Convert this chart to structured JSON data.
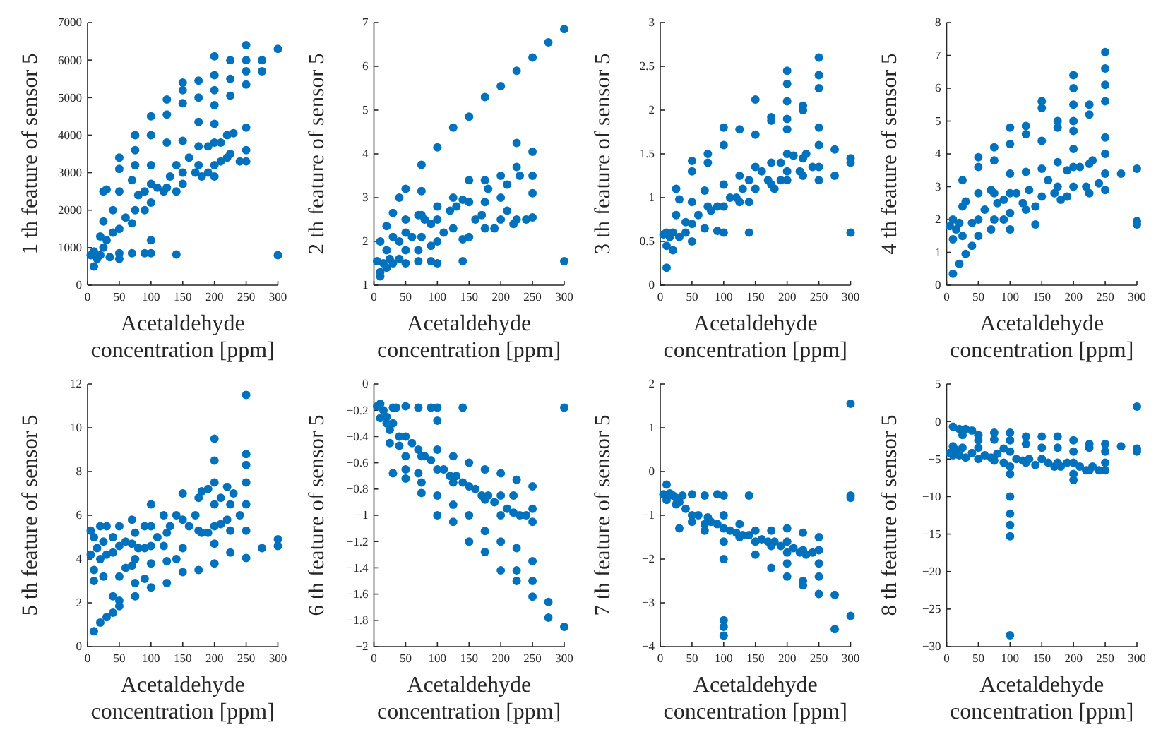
{
  "chart_data": [
    {
      "type": "scatter",
      "xlabel": "Acetaldehyde concentration [ppm]",
      "ylabel": "1 th feature of sensor 5",
      "xlim": [
        0,
        300
      ],
      "xticks": [
        0,
        50,
        100,
        150,
        200,
        250,
        300
      ],
      "ylim": [
        0,
        7000
      ],
      "yticks": [
        0,
        1000,
        2000,
        3000,
        4000,
        5000,
        6000,
        7000
      ],
      "marker": "circle",
      "grid": false,
      "series": [
        {
          "color": "#0072bd",
          "x": [
            5,
            10,
            10,
            15,
            20,
            20,
            25,
            25,
            25,
            30,
            30,
            35,
            40,
            40,
            50,
            50,
            50,
            50,
            50,
            50,
            60,
            70,
            70,
            70,
            75,
            75,
            75,
            75,
            80,
            90,
            90,
            90,
            100,
            100,
            100,
            100,
            100,
            100,
            100,
            110,
            120,
            125,
            125,
            125,
            125,
            130,
            140,
            140,
            140,
            150,
            150,
            150,
            150,
            150,
            150,
            160,
            170,
            175,
            175,
            175,
            175,
            175,
            180,
            190,
            190,
            200,
            200,
            200,
            200,
            200,
            200,
            200,
            200,
            210,
            210,
            220,
            220,
            225,
            225,
            225,
            225,
            230,
            240,
            250,
            250,
            250,
            250,
            250,
            250,
            250,
            275,
            275,
            300,
            300
          ],
          "values": [
            800,
            500,
            900,
            700,
            1300,
            800,
            2500,
            1700,
            1000,
            2550,
            1200,
            750,
            2000,
            1400,
            3400,
            3100,
            2500,
            1500,
            850,
            700,
            1800,
            2800,
            1650,
            850,
            4000,
            3600,
            3200,
            2000,
            2400,
            2500,
            2000,
            850,
            4500,
            4000,
            3200,
            2700,
            2200,
            1200,
            850,
            2600,
            2500,
            4950,
            4550,
            3800,
            2600,
            2900,
            3200,
            2500,
            820,
            5400,
            5200,
            4850,
            3850,
            3000,
            2700,
            3400,
            3000,
            5450,
            5000,
            4350,
            3700,
            3200,
            2900,
            3700,
            3000,
            6100,
            5600,
            5200,
            4800,
            4300,
            3800,
            3200,
            2900,
            3800,
            3300,
            4000,
            3400,
            6000,
            5500,
            5050,
            3500,
            4050,
            3300,
            6400,
            6000,
            5700,
            5350,
            4200,
            3600,
            3300,
            6000,
            5700,
            6300,
            800
          ]
        }
      ]
    },
    {
      "type": "scatter",
      "xlabel": "Acetaldehyde concentration [ppm]",
      "ylabel": "2 th feature of sensor 5",
      "xlim": [
        0,
        300
      ],
      "xticks": [
        0,
        50,
        100,
        150,
        200,
        250,
        300
      ],
      "ylim": [
        1,
        7
      ],
      "yticks": [
        1,
        2,
        3,
        4,
        5,
        6,
        7
      ],
      "marker": "circle",
      "grid": false,
      "series": [
        {
          "color": "#0072bd",
          "x": [
            5,
            10,
            10,
            10,
            15,
            20,
            20,
            20,
            25,
            30,
            30,
            30,
            40,
            40,
            40,
            50,
            50,
            50,
            50,
            50,
            60,
            70,
            70,
            70,
            75,
            75,
            75,
            75,
            80,
            90,
            90,
            90,
            100,
            100,
            100,
            100,
            100,
            110,
            120,
            125,
            125,
            125,
            130,
            140,
            140,
            140,
            150,
            150,
            150,
            150,
            160,
            170,
            175,
            175,
            175,
            175,
            180,
            190,
            200,
            200,
            200,
            200,
            210,
            210,
            220,
            225,
            225,
            225,
            225,
            230,
            240,
            250,
            250,
            250,
            250,
            250,
            275,
            300,
            300
          ],
          "values": [
            1.55,
            2,
            1.3,
            1.2,
            1.5,
            2.35,
            1.8,
            1.4,
            1.6,
            2.65,
            2.1,
            1.5,
            3,
            2,
            1.6,
            3.2,
            2.5,
            2.2,
            1.8,
            1.5,
            2.1,
            2.6,
            1.8,
            1.55,
            3.75,
            3.15,
            2.6,
            2.1,
            2.5,
            2.4,
            1.9,
            1.55,
            4.15,
            2.8,
            2.5,
            2,
            1.5,
            2.2,
            2.7,
            4.6,
            3,
            2.3,
            2.8,
            2.95,
            2.05,
            1.55,
            4.85,
            3.4,
            2.9,
            2.1,
            2.5,
            2.6,
            5.3,
            3.4,
            2.9,
            2.3,
            3.2,
            2.3,
            5.55,
            3.5,
            3,
            2.5,
            3.3,
            2.7,
            2.4,
            5.9,
            4.25,
            3.7,
            2.5,
            3.5,
            2.5,
            6.2,
            4.05,
            3.5,
            3.1,
            2.55,
            6.55,
            6.85,
            1.55
          ]
        }
      ]
    },
    {
      "type": "scatter",
      "xlabel": "Acetaldehyde concentration [ppm]",
      "ylabel": "3 th feature of sensor 5",
      "xlim": [
        0,
        300
      ],
      "xticks": [
        0,
        50,
        100,
        150,
        200,
        250,
        300
      ],
      "ylim": [
        0,
        3
      ],
      "yticks": [
        0,
        0.5,
        1,
        1.5,
        2,
        2.5,
        3
      ],
      "marker": "circle",
      "grid": false,
      "series": [
        {
          "color": "#0072bd",
          "x": [
            5,
            10,
            10,
            10,
            15,
            20,
            20,
            25,
            25,
            30,
            30,
            40,
            40,
            50,
            50,
            50,
            50,
            50,
            60,
            70,
            70,
            75,
            75,
            75,
            80,
            90,
            90,
            100,
            100,
            100,
            100,
            100,
            110,
            120,
            125,
            125,
            125,
            130,
            140,
            140,
            140,
            150,
            150,
            150,
            150,
            160,
            170,
            175,
            175,
            175,
            175,
            180,
            190,
            190,
            200,
            200,
            200,
            200,
            200,
            200,
            200,
            200,
            210,
            220,
            225,
            225,
            225,
            225,
            230,
            240,
            250,
            250,
            250,
            250,
            250,
            250,
            250,
            275,
            275,
            300,
            300,
            300
          ],
          "values": [
            0.58,
            0.6,
            0.45,
            0.2,
            0.55,
            0.4,
            0.6,
            1.1,
            0.8,
            0.98,
            0.55,
            0.72,
            0.6,
            1.42,
            1.3,
            0.95,
            0.7,
            0.5,
            0.8,
            1.08,
            0.65,
            1.5,
            1.4,
            0.9,
            0.85,
            0.9,
            0.62,
            1.8,
            1.6,
            1.15,
            0.9,
            0.6,
            1,
            1,
            1.78,
            1.25,
            0.95,
            1.1,
            1.2,
            0.95,
            0.6,
            2.12,
            1.72,
            1.35,
            1.1,
            1.3,
            1.2,
            1.92,
            1.88,
            1.4,
            1.15,
            1.1,
            1.4,
            1.2,
            2.45,
            2.3,
            2.1,
            1.9,
            1.78,
            1.5,
            1.3,
            1.2,
            1.48,
            1.3,
            2.05,
            2,
            1.45,
            1.25,
            1.5,
            1.35,
            2.6,
            2.4,
            2.25,
            1.8,
            1.6,
            1.35,
            1.2,
            1.55,
            1.25,
            1.45,
            1.4,
            0.6
          ]
        }
      ]
    },
    {
      "type": "scatter",
      "xlabel": "Acetaldehyde concentration [ppm]",
      "ylabel": "4 th feature of sensor 5",
      "xlim": [
        0,
        300
      ],
      "xticks": [
        0,
        50,
        100,
        150,
        200,
        250,
        300
      ],
      "ylim": [
        0,
        8
      ],
      "yticks": [
        0,
        1,
        2,
        3,
        4,
        5,
        6,
        7,
        8
      ],
      "marker": "circle",
      "grid": false,
      "series": [
        {
          "color": "#0072bd",
          "x": [
            5,
            10,
            10,
            10,
            15,
            20,
            20,
            25,
            25,
            25,
            30,
            30,
            40,
            40,
            50,
            50,
            50,
            50,
            50,
            60,
            70,
            70,
            75,
            75,
            75,
            75,
            80,
            90,
            90,
            100,
            100,
            100,
            100,
            100,
            100,
            110,
            120,
            125,
            125,
            125,
            125,
            130,
            140,
            140,
            150,
            150,
            150,
            150,
            150,
            160,
            170,
            175,
            175,
            175,
            175,
            180,
            190,
            190,
            200,
            200,
            200,
            200,
            200,
            200,
            200,
            200,
            210,
            220,
            225,
            225,
            225,
            225,
            230,
            240,
            250,
            250,
            250,
            250,
            250,
            250,
            250,
            250,
            275,
            300,
            300,
            300
          ],
          "values": [
            1.8,
            2,
            1.4,
            0.35,
            1.7,
            1.9,
            0.65,
            3.2,
            2.4,
            1.5,
            2.55,
            0.95,
            1.9,
            1.2,
            3.9,
            3.6,
            2.8,
            2,
            1.5,
            2.3,
            2.9,
            1.7,
            4.2,
            3.8,
            2.8,
            2,
            2.5,
            2.6,
            2,
            4.8,
            4.3,
            3.4,
            2.8,
            2.2,
            1.7,
            2.8,
            2.5,
            4.85,
            4.6,
            3.45,
            2.3,
            2.9,
            2.4,
            1.85,
            5.6,
            5.4,
            4.4,
            3.55,
            2.7,
            3.2,
            2.8,
            5,
            4.8,
            3.75,
            3,
            2.6,
            3.5,
            2.7,
            6.4,
            6,
            5.5,
            5,
            4.7,
            4.15,
            3.6,
            3,
            3.6,
            3,
            5.5,
            5.2,
            3.7,
            2.8,
            3.8,
            3.1,
            7.1,
            6.6,
            6.1,
            5.6,
            4.5,
            4,
            3.4,
            2.9,
            3.4,
            3.55,
            1.95,
            1.85
          ]
        }
      ]
    },
    {
      "type": "scatter",
      "xlabel": "Acetaldehyde concentration [ppm]",
      "ylabel": "5 th feature of sensor 5",
      "xlim": [
        0,
        300
      ],
      "xticks": [
        0,
        50,
        100,
        150,
        200,
        250,
        300
      ],
      "ylim": [
        0,
        12
      ],
      "yticks": [
        0,
        2,
        4,
        6,
        8,
        10,
        12
      ],
      "marker": "circle",
      "grid": false,
      "series": [
        {
          "color": "#0072bd",
          "x": [
            5,
            5,
            10,
            10,
            10,
            10,
            15,
            20,
            20,
            20,
            25,
            25,
            30,
            30,
            30,
            40,
            40,
            40,
            40,
            50,
            50,
            50,
            50,
            50,
            60,
            60,
            70,
            70,
            70,
            75,
            75,
            75,
            75,
            80,
            90,
            90,
            90,
            100,
            100,
            100,
            100,
            100,
            110,
            120,
            120,
            125,
            125,
            125,
            130,
            140,
            140,
            150,
            150,
            150,
            150,
            160,
            170,
            175,
            175,
            175,
            180,
            180,
            190,
            190,
            200,
            200,
            200,
            200,
            200,
            200,
            200,
            210,
            210,
            220,
            220,
            225,
            225,
            225,
            230,
            240,
            250,
            250,
            250,
            250,
            250,
            250,
            250,
            275,
            300,
            300
          ],
          "values": [
            5.3,
            4.2,
            5,
            3.5,
            3,
            0.7,
            4.5,
            5.5,
            4,
            1.1,
            4.8,
            3.2,
            5.5,
            4.2,
            1.35,
            5,
            4.3,
            2.3,
            1.55,
            5.5,
            4.6,
            3.2,
            2.1,
            1.85,
            4.8,
            3.6,
            5.8,
            4.7,
            3.7,
            5.2,
            4,
            2.9,
            2.3,
            4.5,
            5.5,
            4.5,
            3.1,
            6.5,
            5.5,
            4.6,
            3.8,
            2.7,
            5,
            6,
            4.6,
            5.2,
            3.9,
            2.9,
            5.5,
            6,
            4,
            7,
            5.8,
            4.5,
            3.4,
            5.5,
            6,
            6.8,
            5.3,
            3.5,
            7.1,
            5.2,
            7.2,
            5.2,
            9.5,
            8.5,
            7.5,
            6.5,
            5.5,
            4.7,
            3.8,
            6.8,
            5.6,
            7.3,
            5.8,
            6.5,
            5.3,
            4.3,
            7,
            6,
            11.5,
            8.8,
            8.3,
            7.5,
            6.5,
            5.3,
            4.05,
            4.5,
            4.9,
            4.6
          ]
        }
      ]
    },
    {
      "type": "scatter",
      "xlabel": "Acetaldehyde concentration [ppm]",
      "ylabel": "6 th feature of sensor 5",
      "xlim": [
        0,
        300
      ],
      "xticks": [
        0,
        50,
        100,
        150,
        200,
        250,
        300
      ],
      "ylim": [
        -2,
        0
      ],
      "yticks": [
        -2,
        -1.8,
        -1.6,
        -1.4,
        -1.2,
        -1,
        -0.8,
        -0.6,
        -0.4,
        -0.2,
        0
      ],
      "marker": "circle",
      "grid": false,
      "series": [
        {
          "color": "#0072bd",
          "x": [
            5,
            10,
            10,
            15,
            20,
            20,
            25,
            25,
            30,
            30,
            30,
            35,
            40,
            40,
            50,
            50,
            50,
            50,
            50,
            60,
            70,
            70,
            70,
            75,
            75,
            75,
            80,
            90,
            90,
            100,
            100,
            100,
            100,
            100,
            100,
            110,
            120,
            125,
            125,
            125,
            125,
            130,
            140,
            140,
            150,
            150,
            150,
            150,
            160,
            170,
            175,
            175,
            175,
            175,
            180,
            190,
            200,
            200,
            200,
            200,
            200,
            210,
            220,
            220,
            225,
            225,
            225,
            225,
            230,
            240,
            250,
            250,
            250,
            250,
            250,
            250,
            275,
            275,
            300,
            300
          ],
          "values": [
            -0.17,
            -0.15,
            -0.26,
            -0.2,
            -0.25,
            -0.3,
            -0.35,
            -0.45,
            -0.18,
            -0.3,
            -0.68,
            -0.18,
            -0.4,
            -0.47,
            -0.17,
            -0.4,
            -0.55,
            -0.65,
            -0.72,
            -0.45,
            -0.18,
            -0.5,
            -0.68,
            -0.55,
            -0.75,
            -0.83,
            -0.55,
            -0.18,
            -0.58,
            -0.18,
            -0.28,
            -0.5,
            -0.65,
            -0.85,
            -1,
            -0.65,
            -0.7,
            -0.55,
            -0.75,
            -0.92,
            -1.05,
            -0.7,
            -0.18,
            -0.75,
            -0.6,
            -0.78,
            -1,
            -1.2,
            -0.8,
            -0.85,
            -0.65,
            -0.88,
            -1.12,
            -1.28,
            -0.85,
            -0.9,
            -0.68,
            -0.85,
            -1,
            -1.2,
            -1.42,
            -0.95,
            -0.85,
            -0.98,
            -0.73,
            -1.25,
            -1.42,
            -1.5,
            -1,
            -1,
            -0.78,
            -0.95,
            -1.05,
            -1.35,
            -1.5,
            -1.62,
            -1.66,
            -1.78,
            -0.18,
            -1.85
          ]
        }
      ]
    },
    {
      "type": "scatter",
      "xlabel": "Acetaldehyde concentration [ppm]",
      "ylabel": "7 th feature of sensor 5",
      "xlim": [
        0,
        300
      ],
      "xticks": [
        0,
        50,
        100,
        150,
        200,
        250,
        300
      ],
      "ylim": [
        -4,
        2
      ],
      "yticks": [
        -4,
        -3,
        -2,
        -1,
        0,
        1,
        2
      ],
      "marker": "circle",
      "grid": false,
      "series": [
        {
          "color": "#0072bd",
          "x": [
            5,
            10,
            10,
            15,
            20,
            25,
            25,
            30,
            30,
            35,
            40,
            50,
            50,
            50,
            60,
            70,
            70,
            70,
            75,
            80,
            90,
            90,
            100,
            100,
            100,
            100,
            100,
            100,
            100,
            100,
            110,
            120,
            125,
            125,
            130,
            140,
            140,
            150,
            150,
            150,
            160,
            170,
            175,
            175,
            175,
            180,
            190,
            200,
            200,
            200,
            200,
            200,
            210,
            220,
            225,
            225,
            225,
            225,
            230,
            240,
            250,
            250,
            250,
            250,
            250,
            275,
            275,
            300,
            300,
            300,
            300
          ],
          "values": [
            -0.52,
            -0.3,
            -0.65,
            -0.5,
            -0.55,
            -0.6,
            -0.75,
            -1.3,
            -0.7,
            -0.55,
            -0.85,
            -0.52,
            -1,
            -1.15,
            -1,
            -0.55,
            -1.2,
            -1.35,
            -1.05,
            -1.15,
            -0.52,
            -1.2,
            -0.55,
            -1,
            -1.3,
            -1.6,
            -2,
            -3.4,
            -3.55,
            -3.75,
            -1.35,
            -1.4,
            -1.2,
            -1.5,
            -1.45,
            -0.55,
            -1.45,
            -1.35,
            -1.6,
            -1.9,
            -1.55,
            -1.6,
            -1.35,
            -1.7,
            -2.2,
            -1.6,
            -1.7,
            -1.3,
            -1.6,
            -1.85,
            -2.1,
            -2.4,
            -1.75,
            -1.85,
            -1.4,
            -1.8,
            -2.5,
            -2.6,
            -1.9,
            -1.85,
            -1.5,
            -1.8,
            -2.1,
            -2.4,
            -2.8,
            -2.82,
            -3.6,
            1.55,
            -0.55,
            -0.6,
            -3.3
          ]
        }
      ]
    },
    {
      "type": "scatter",
      "xlabel": "Acetaldehyde concentration [ppm]",
      "ylabel": "8 th feature of sensor 5",
      "xlim": [
        0,
        300
      ],
      "xticks": [
        0,
        50,
        100,
        150,
        200,
        250,
        300
      ],
      "ylim": [
        -30,
        5
      ],
      "yticks": [
        -30,
        -25,
        -20,
        -15,
        -10,
        -5,
        0,
        5
      ],
      "marker": "circle",
      "grid": false,
      "series": [
        {
          "color": "#0072bd",
          "x": [
            5,
            10,
            10,
            10,
            15,
            20,
            20,
            25,
            25,
            30,
            30,
            40,
            40,
            50,
            50,
            50,
            50,
            60,
            70,
            75,
            75,
            75,
            80,
            90,
            90,
            100,
            100,
            100,
            100,
            100,
            100,
            100,
            100,
            100,
            100,
            110,
            120,
            125,
            125,
            125,
            130,
            140,
            150,
            150,
            150,
            160,
            170,
            175,
            175,
            175,
            180,
            190,
            200,
            200,
            200,
            200,
            200,
            210,
            220,
            225,
            225,
            225,
            230,
            240,
            250,
            250,
            250,
            250,
            275,
            300,
            300,
            300
          ],
          "values": [
            -4.2,
            -0.7,
            -3.3,
            -4.5,
            -3.8,
            -1,
            -4.5,
            -1.8,
            -3.5,
            -1,
            -4.8,
            -1.2,
            -4.2,
            -1.8,
            -2.5,
            -3.5,
            -5,
            -4.5,
            -4.8,
            -1.5,
            -2.4,
            -5.2,
            -4.3,
            -5.5,
            -3.6,
            -1.5,
            -2.5,
            -4,
            -6,
            -7,
            -10,
            -12.3,
            -13.8,
            -15.3,
            -28.5,
            -5,
            -5.2,
            -2,
            -3,
            -5.5,
            -5,
            -5.8,
            -2,
            -3.5,
            -5,
            -5.5,
            -6,
            -2,
            -3.5,
            -5.5,
            -6,
            -5.5,
            -2.5,
            -4,
            -5.5,
            -7,
            -7.8,
            -6,
            -6.5,
            -3,
            -3.5,
            -6.5,
            -6,
            -6.5,
            -3,
            -4,
            -5.5,
            -6.5,
            -3.3,
            2,
            -3.6,
            -4
          ]
        }
      ]
    }
  ]
}
